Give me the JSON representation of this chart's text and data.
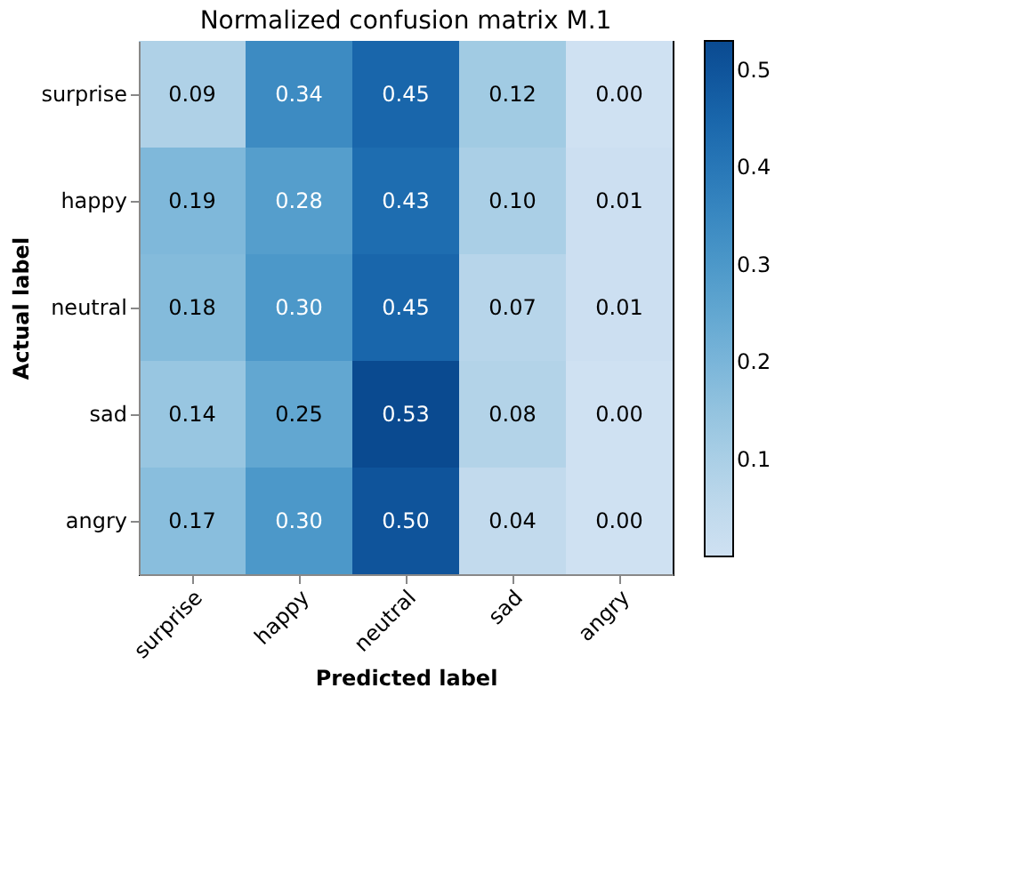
{
  "chart_data": {
    "type": "heatmap",
    "title": "Normalized confusion matrix M.1",
    "xlabel": "Predicted label",
    "ylabel": "Actual label",
    "categories": [
      "surprise",
      "happy",
      "neutral",
      "sad",
      "angry"
    ],
    "y_categories": [
      "surprise",
      "happy",
      "neutral",
      "sad",
      "angry"
    ],
    "cells": [
      [
        0.09,
        0.34,
        0.45,
        0.12,
        0.0
      ],
      [
        0.19,
        0.28,
        0.43,
        0.1,
        0.01
      ],
      [
        0.18,
        0.3,
        0.45,
        0.07,
        0.01
      ],
      [
        0.14,
        0.25,
        0.53,
        0.08,
        0.0
      ],
      [
        0.17,
        0.3,
        0.5,
        0.04,
        0.0
      ]
    ],
    "cell_labels": [
      [
        "0.09",
        "0.34",
        "0.45",
        "0.12",
        "0.00"
      ],
      [
        "0.19",
        "0.28",
        "0.43",
        "0.10",
        "0.01"
      ],
      [
        "0.18",
        "0.30",
        "0.45",
        "0.07",
        "0.01"
      ],
      [
        "0.14",
        "0.25",
        "0.53",
        "0.08",
        "0.00"
      ],
      [
        "0.17",
        "0.30",
        "0.50",
        "0.04",
        "0.00"
      ]
    ],
    "clim": [
      0,
      0.53
    ],
    "cticks": [
      0.1,
      0.2,
      0.3,
      0.4,
      0.5
    ]
  }
}
